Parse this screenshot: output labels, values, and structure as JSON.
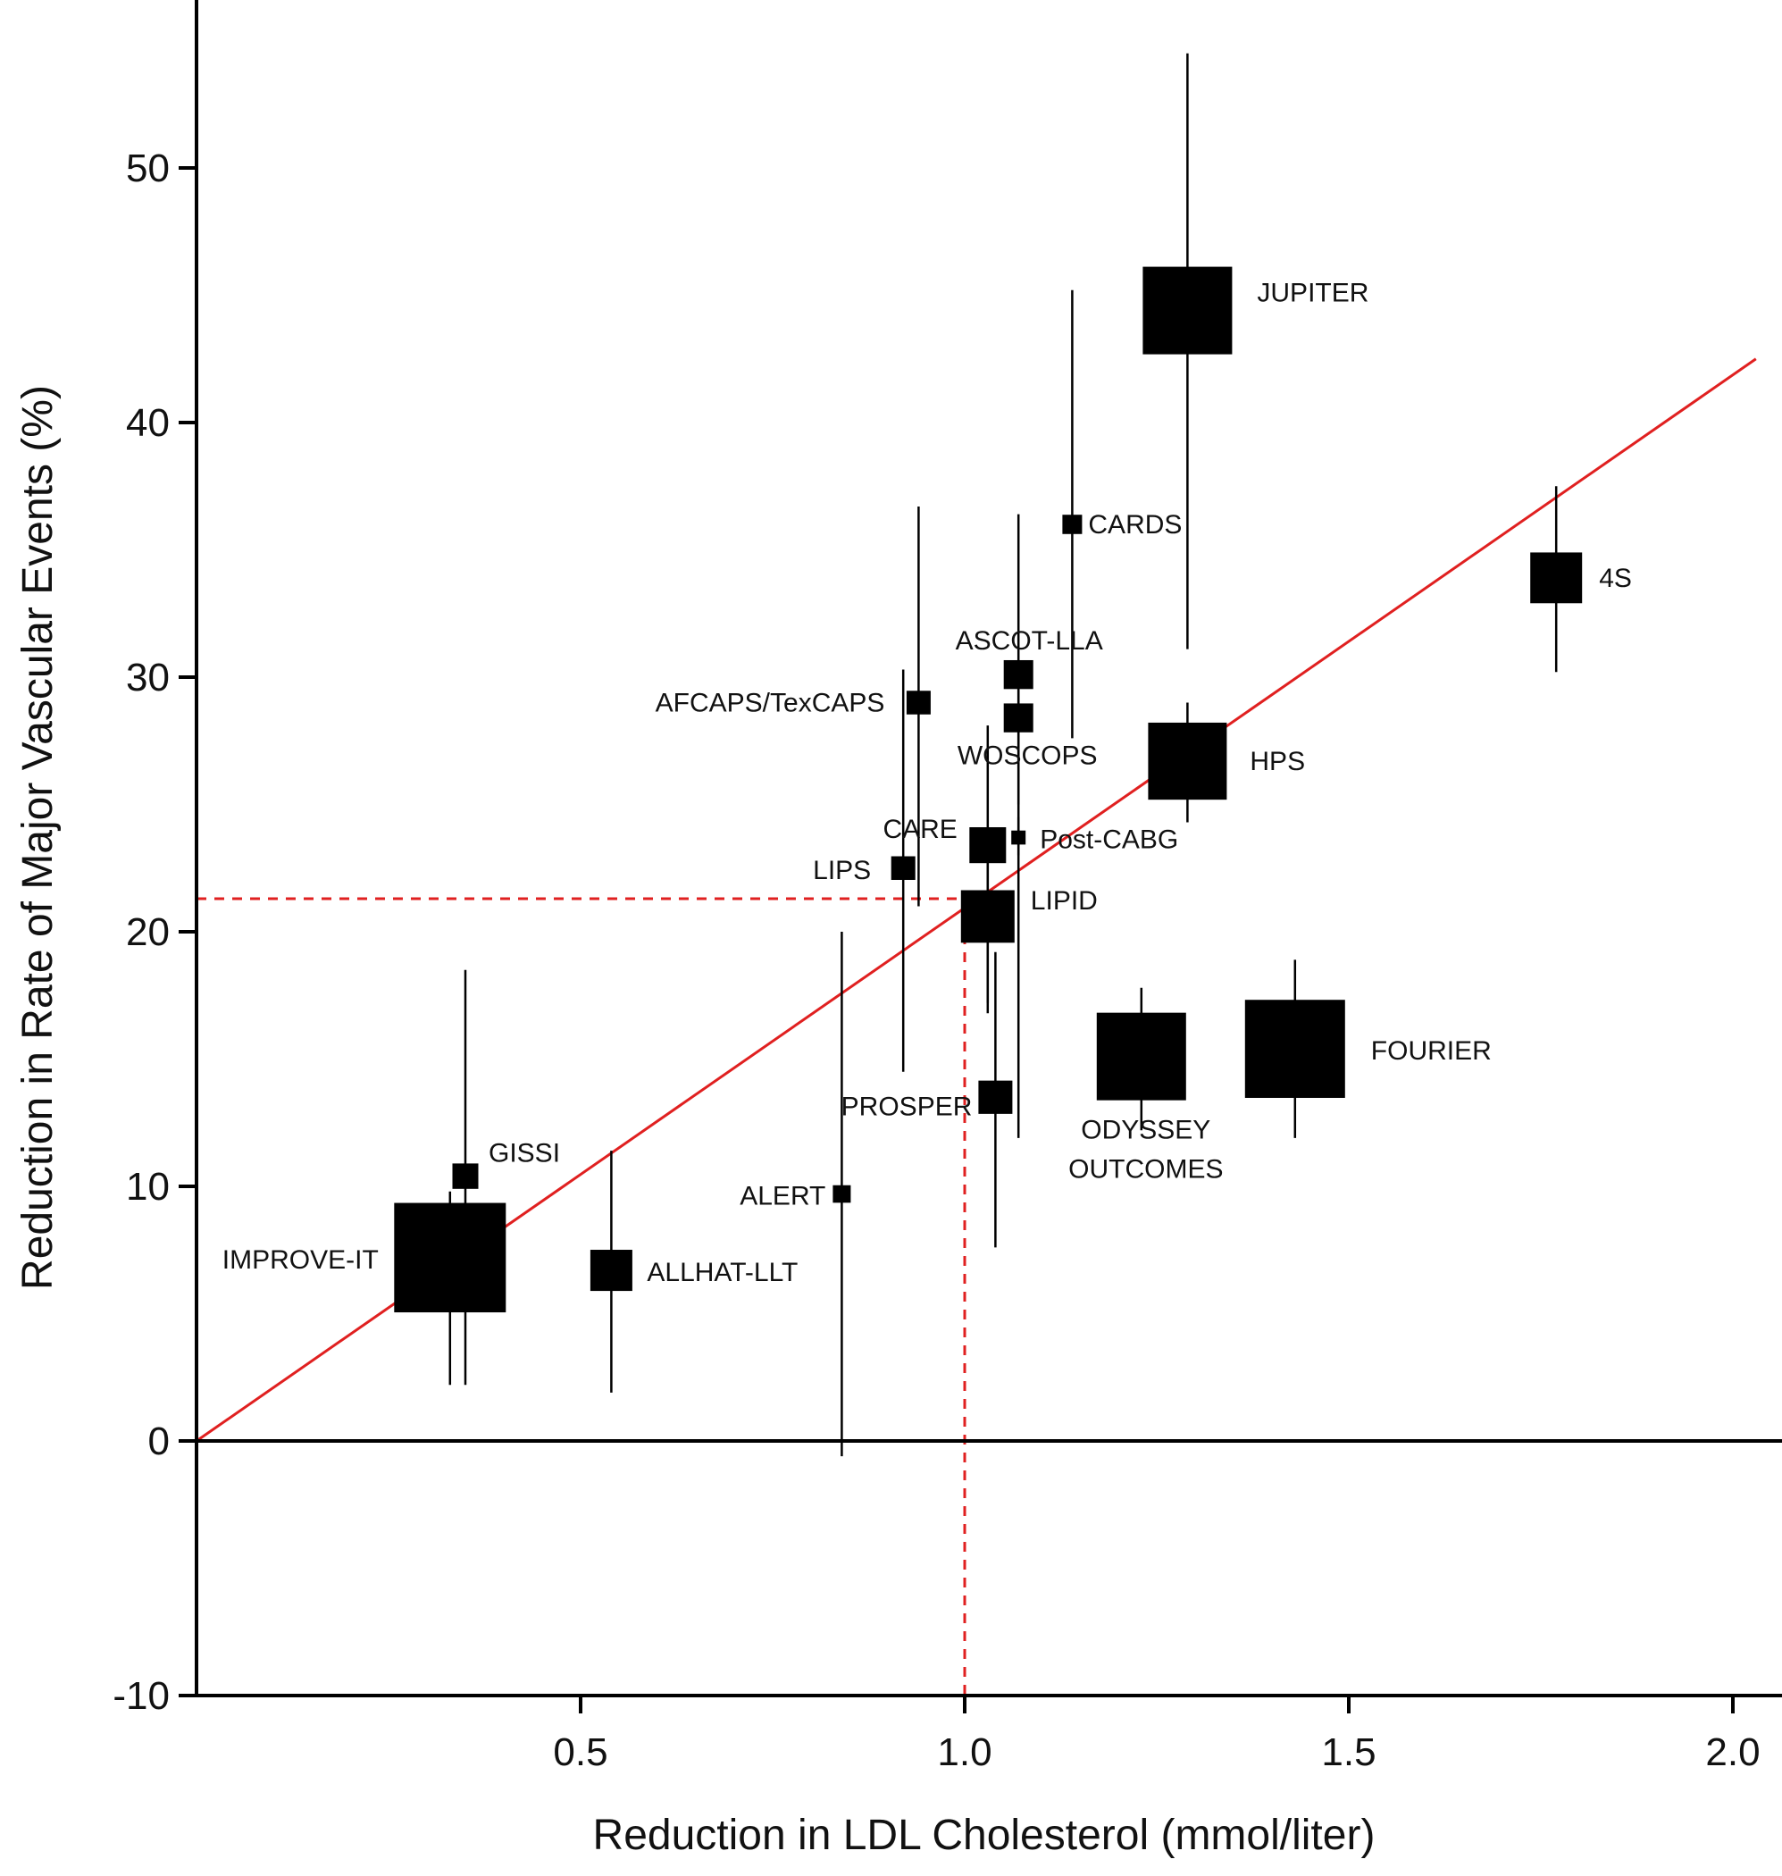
{
  "chart_data": {
    "type": "scatter",
    "title": "",
    "xlabel": "Reduction in LDL Cholesterol (mmol/liter)",
    "ylabel": "Reduction in Rate of Major Vascular Events (%)",
    "xlim": [
      0,
      2.05
    ],
    "ylim": [
      -10,
      56
    ],
    "x_ticks": [
      "0.5",
      "1.0",
      "1.5",
      "2.0"
    ],
    "y_ticks": [
      "-10",
      "0",
      "10",
      "20",
      "30",
      "40",
      "50"
    ],
    "zero_line": 0,
    "regression_line": {
      "x": [
        0,
        2.03
      ],
      "y": [
        0,
        42.5
      ],
      "color": "#e02020"
    },
    "reference": {
      "x": 1.0,
      "y": 21.3,
      "color": "#e02020"
    },
    "marker_color": "#000000",
    "points": [
      {
        "label": "JUPITER",
        "x": 1.29,
        "y": 44.4,
        "ci": [
          31.1,
          54.5
        ],
        "weight": 1.0
      },
      {
        "label": "CARDS",
        "x": 1.14,
        "y": 36.0,
        "ci": [
          27.6,
          45.2
        ],
        "weight": 0.22
      },
      {
        "label": "4S",
        "x": 1.77,
        "y": 33.9,
        "ci": [
          30.2,
          37.5
        ],
        "weight": 0.58
      },
      {
        "label": "ASCOT-LLA",
        "x": 1.07,
        "y": 30.1,
        "ci": [
          25.0,
          36.4
        ],
        "weight": 0.33
      },
      {
        "label": "WOSCOPS",
        "x": 1.07,
        "y": 28.4,
        "ci": [
          23.0,
          29.5
        ],
        "weight": 0.33
      },
      {
        "label": "AFCAPS/TexCAPS",
        "x": 0.94,
        "y": 29.0,
        "ci": [
          21.0,
          36.7
        ],
        "weight": 0.27
      },
      {
        "label": "HPS",
        "x": 1.29,
        "y": 26.7,
        "ci": [
          24.3,
          29.0
        ],
        "weight": 0.88
      },
      {
        "label": "CARE",
        "x": 1.03,
        "y": 23.4,
        "ci": [
          17.2,
          28.1
        ],
        "weight": 0.41
      },
      {
        "label": "Post-CABG",
        "x": 1.07,
        "y": 23.7,
        "ci": [
          11.9,
          24.5
        ],
        "weight": 0.16
      },
      {
        "label": "LIPS",
        "x": 0.92,
        "y": 22.5,
        "ci": [
          14.5,
          30.3
        ],
        "weight": 0.27
      },
      {
        "label": "LIPID",
        "x": 1.03,
        "y": 20.6,
        "ci": [
          16.8,
          24.0
        ],
        "weight": 0.6
      },
      {
        "label": "PROSPER",
        "x": 1.04,
        "y": 13.5,
        "ci": [
          7.6,
          19.2
        ],
        "weight": 0.38
      },
      {
        "label": "ODYSSEY OUTCOMES",
        "x": 1.23,
        "y": 15.1,
        "ci": [
          12.2,
          17.8
        ],
        "weight": 1.0
      },
      {
        "label": "FOURIER",
        "x": 1.43,
        "y": 15.4,
        "ci": [
          11.9,
          18.9
        ],
        "weight": 1.12
      },
      {
        "label": "GISSI",
        "x": 0.35,
        "y": 10.4,
        "ci": [
          2.2,
          18.5
        ],
        "weight": 0.29
      },
      {
        "label": "ALERT",
        "x": 0.84,
        "y": 9.7,
        "ci": [
          -0.6,
          20.0
        ],
        "weight": 0.2
      },
      {
        "label": "IMPROVE-IT",
        "x": 0.33,
        "y": 7.2,
        "ci": [
          2.2,
          9.8
        ],
        "weight": 1.25
      },
      {
        "label": "ALLHAT-LLT",
        "x": 0.54,
        "y": 6.7,
        "ci": [
          1.9,
          11.4
        ],
        "weight": 0.47
      }
    ]
  }
}
